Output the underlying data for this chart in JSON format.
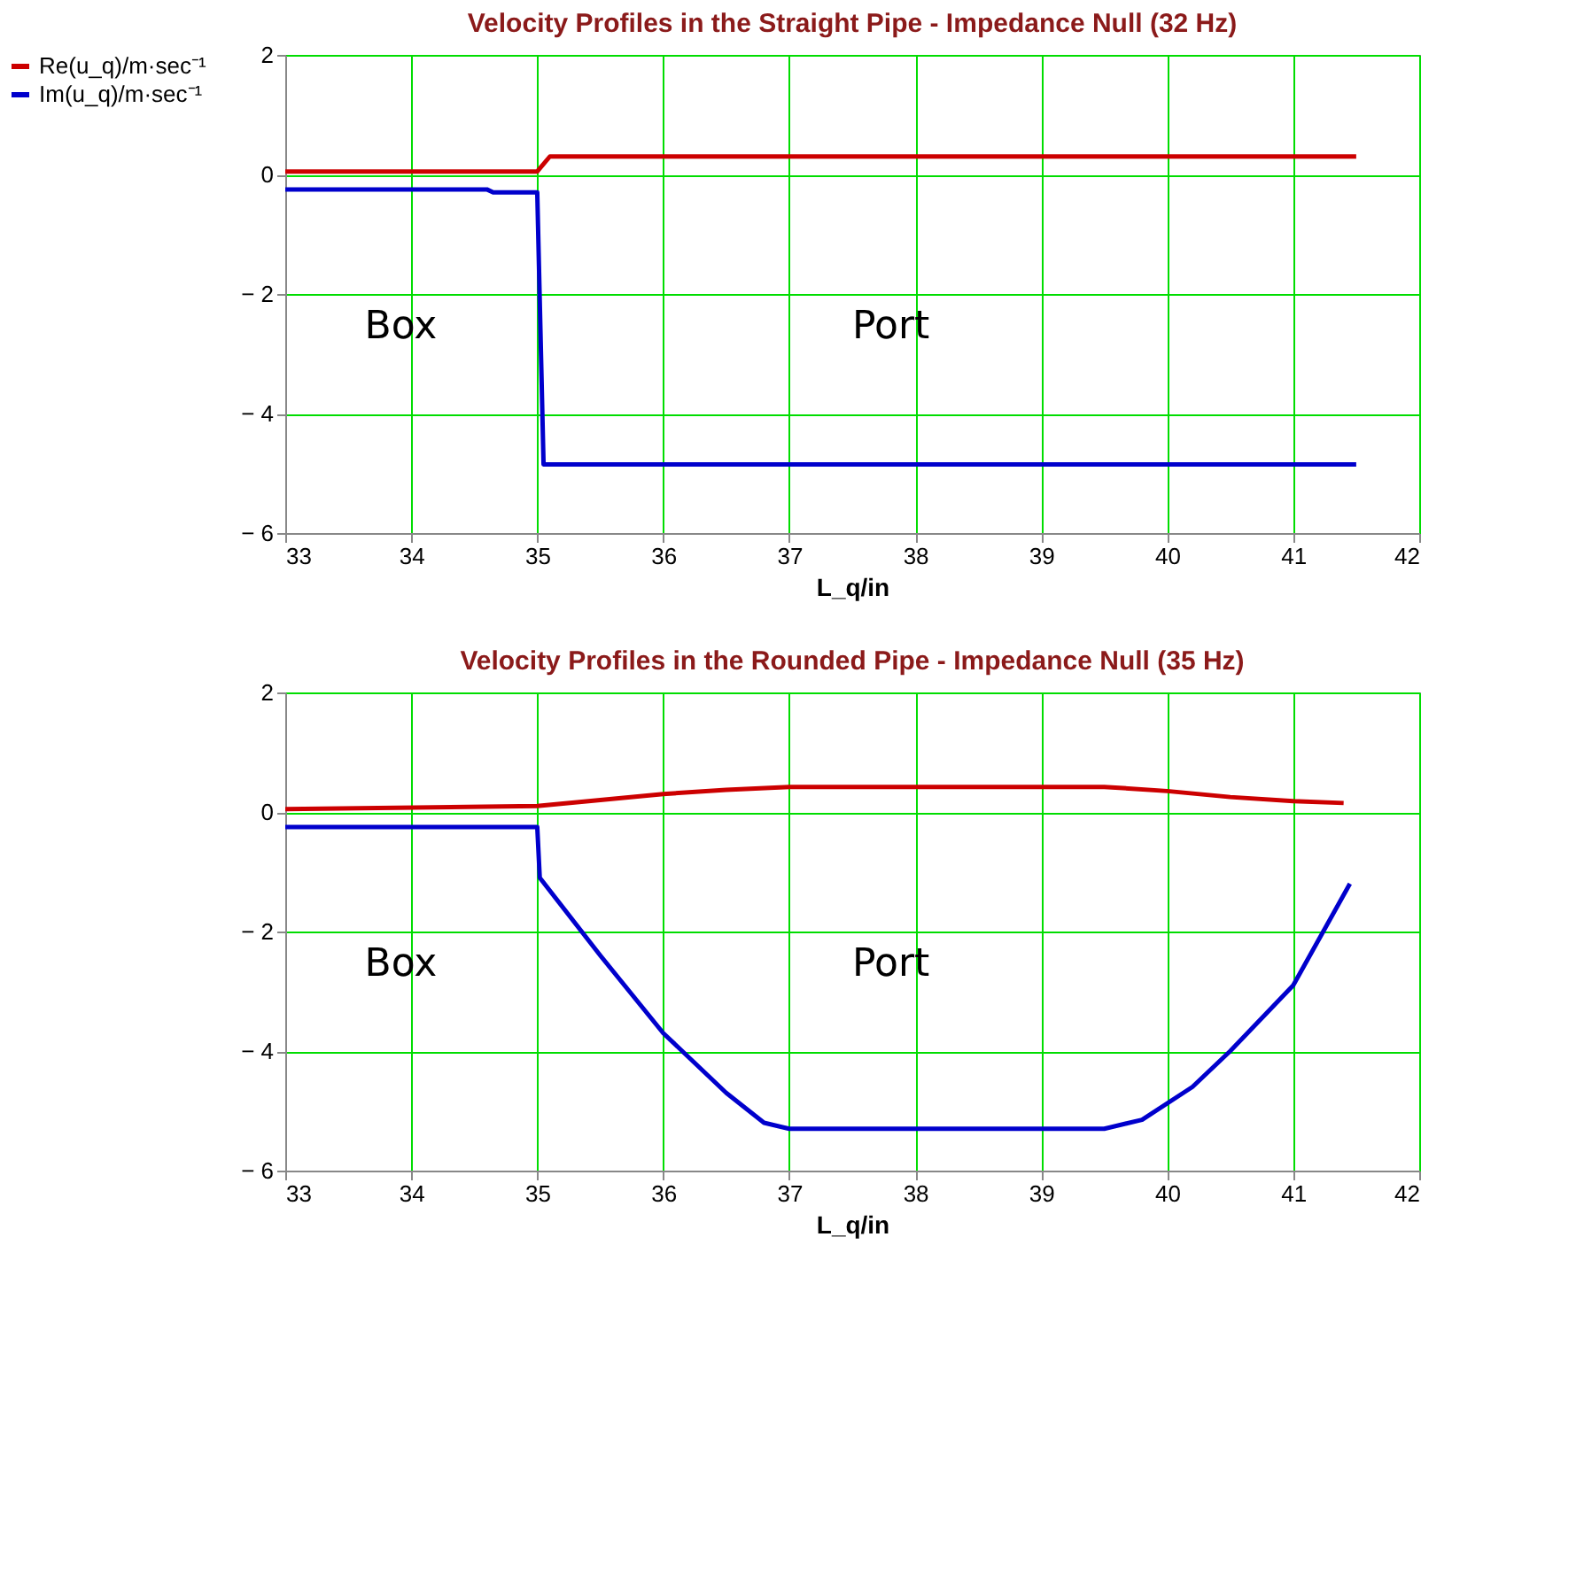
{
  "chart_data": [
    {
      "type": "line",
      "title": "Velocity Profiles in the Straight Pipe - Impedance Null (32 Hz)",
      "xlabel": "L_q/in",
      "legend": "left",
      "grid": true,
      "marker": "none",
      "line_style": "solid",
      "xlim": [
        33,
        42
      ],
      "xticks": [
        33,
        34,
        35,
        36,
        37,
        38,
        39,
        40,
        41,
        42
      ],
      "ylim": [
        -6,
        2
      ],
      "yticks": [
        {
          "value": -6,
          "label": "− 6"
        },
        {
          "value": -4,
          "label": "− 4"
        },
        {
          "value": -2,
          "label": "− 2"
        },
        0,
        2
      ],
      "annotations": [
        "Box",
        "Port"
      ],
      "series": [
        {
          "name": "Re(u_q)/m·sec⁻¹",
          "color": "#cc0000",
          "x": [
            33,
            35.0,
            35.1,
            41.5
          ],
          "values": [
            0.05,
            0.05,
            0.3,
            0.3
          ]
        },
        {
          "name": "Im(u_q)/m·sec⁻¹",
          "color": "#0000cc",
          "x": [
            33,
            34.6,
            34.65,
            35.0,
            35.05,
            41.5
          ],
          "values": [
            -0.25,
            -0.25,
            -0.3,
            -0.3,
            -4.85,
            -4.85
          ]
        }
      ]
    },
    {
      "type": "line",
      "title": "Velocity Profiles in the Rounded Pipe - Impedance Null (35 Hz)",
      "xlabel": "L_q/in",
      "legend": "left",
      "grid": true,
      "marker": "none",
      "line_style": "solid",
      "xlim": [
        33,
        42
      ],
      "xticks": [
        33,
        34,
        35,
        36,
        37,
        38,
        39,
        40,
        41,
        42
      ],
      "ylim": [
        -6,
        2
      ],
      "yticks": [
        {
          "value": -6,
          "label": "− 6"
        },
        {
          "value": -4,
          "label": "− 4"
        },
        {
          "value": -2,
          "label": "− 2"
        },
        0,
        2
      ],
      "annotations": [
        "Box",
        "Port"
      ],
      "series": [
        {
          "name": "Re(u_q)/m·sec⁻¹",
          "color": "#cc0000",
          "x": [
            33,
            35.0,
            35.5,
            36,
            36.5,
            37,
            38,
            39,
            39.5,
            40,
            40.5,
            41,
            41.4
          ],
          "values": [
            0.05,
            0.1,
            0.2,
            0.3,
            0.37,
            0.42,
            0.42,
            0.42,
            0.42,
            0.35,
            0.25,
            0.18,
            0.15
          ]
        },
        {
          "name": "Im(u_q)/m·sec⁻¹",
          "color": "#0000cc",
          "x": [
            33,
            35.0,
            35.02,
            35.5,
            36,
            36.5,
            36.8,
            37,
            38,
            39,
            39.5,
            39.8,
            40.2,
            40.5,
            41,
            41.45
          ],
          "values": [
            -0.25,
            -0.25,
            -1.1,
            -2.4,
            -3.7,
            -4.7,
            -5.2,
            -5.3,
            -5.3,
            -5.3,
            -5.3,
            -5.15,
            -4.6,
            -4.0,
            -2.9,
            -1.2
          ]
        }
      ]
    }
  ]
}
